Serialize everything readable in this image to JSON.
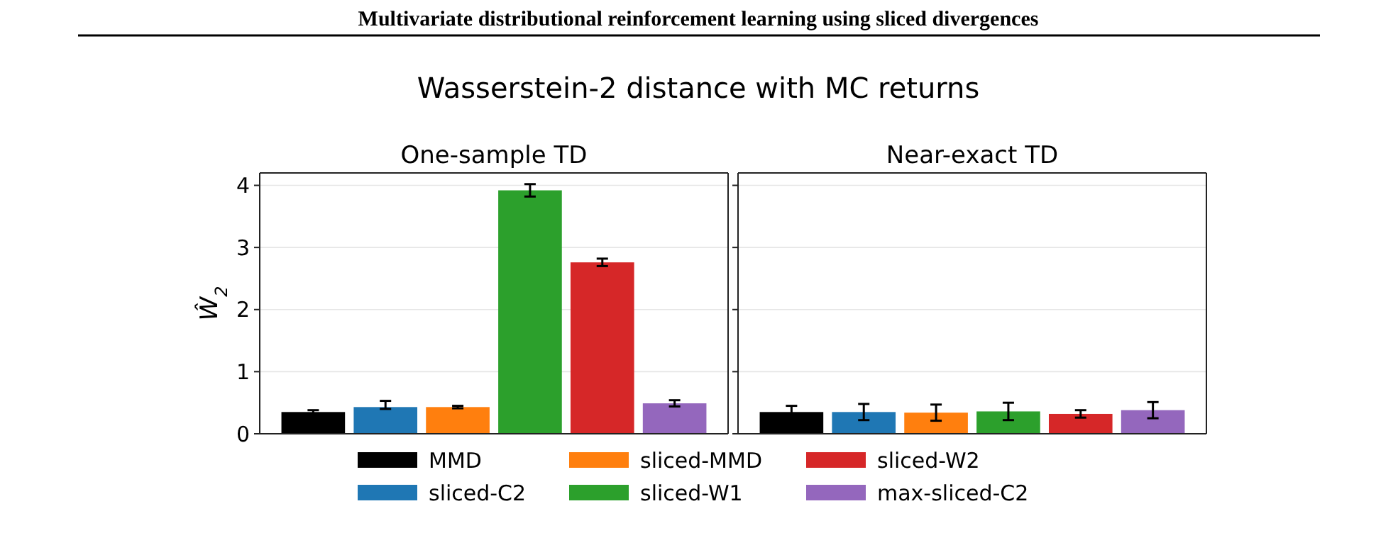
{
  "chart_data": {
    "type": "bar",
    "title": "Wasserstein-2 distance with MC returns",
    "ylabel": "Ŵ$_{2}$",
    "annotations": [
      "Multivariate distributional reinforcement learning using sliced divergences"
    ],
    "categories": [
      "One-sample TD",
      "Near-exact TD"
    ],
    "ylim": [
      0,
      4.2
    ],
    "yticks": [
      0,
      1,
      2,
      3,
      4
    ],
    "grid": "y",
    "legend": "bottom",
    "series": [
      {
        "name": "MMD",
        "color": "#000000",
        "values": [
          0.35,
          0.35
        ],
        "errors": [
          0.03,
          0.1
        ]
      },
      {
        "name": "sliced-C2",
        "color": "#1f77b4",
        "values": [
          0.43,
          0.35
        ],
        "errors": [
          [
            0.4,
            0.53
          ],
          0.13
        ]
      },
      {
        "name": "sliced-MMD",
        "color": "#ff7f0e",
        "values": [
          0.43,
          0.34
        ],
        "errors": [
          0.02,
          0.13
        ]
      },
      {
        "name": "sliced-W1",
        "color": "#2ca02c",
        "values": [
          3.92,
          0.36
        ],
        "errors": [
          0.1,
          0.14
        ]
      },
      {
        "name": "sliced-W2",
        "color": "#d62728",
        "values": [
          2.76,
          0.32
        ],
        "errors": [
          0.06,
          0.06
        ]
      },
      {
        "name": "max-sliced-C2",
        "color": "#9467bd",
        "values": [
          0.49,
          0.38
        ],
        "errors": [
          0.05,
          0.13
        ]
      }
    ]
  }
}
